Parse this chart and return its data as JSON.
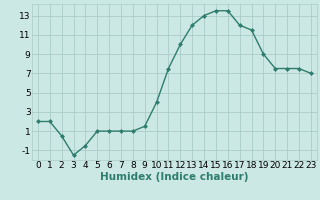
{
  "x": [
    0,
    1,
    2,
    3,
    4,
    5,
    6,
    7,
    8,
    9,
    10,
    11,
    12,
    13,
    14,
    15,
    16,
    17,
    18,
    19,
    20,
    21,
    22,
    23
  ],
  "y": [
    2,
    2,
    0.5,
    -1.5,
    -0.5,
    1,
    1,
    1,
    1,
    1.5,
    4,
    7.5,
    10,
    12,
    13,
    13.5,
    13.5,
    12,
    11.5,
    9,
    7.5,
    7.5,
    7.5,
    7
  ],
  "line_color": "#2e7d6e",
  "marker": "D",
  "marker_size": 2.0,
  "bg_color": "#cce8e4",
  "grid_color": "#aaccc8",
  "xlabel": "Humidex (Indice chaleur)",
  "xlim": [
    -0.5,
    23.5
  ],
  "ylim": [
    -2,
    14.2
  ],
  "yticks": [
    -1,
    1,
    3,
    5,
    7,
    9,
    11,
    13
  ],
  "xticks": [
    0,
    1,
    2,
    3,
    4,
    5,
    6,
    7,
    8,
    9,
    10,
    11,
    12,
    13,
    14,
    15,
    16,
    17,
    18,
    19,
    20,
    21,
    22,
    23
  ],
  "xlabel_fontsize": 7.5,
  "tick_fontsize": 6.5,
  "line_width": 1.0
}
